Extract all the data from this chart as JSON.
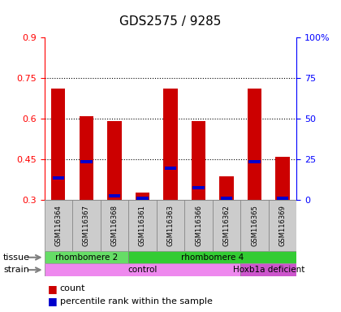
{
  "title": "GDS2575 / 9285",
  "samples": [
    "GSM116364",
    "GSM116367",
    "GSM116368",
    "GSM116361",
    "GSM116363",
    "GSM116366",
    "GSM116362",
    "GSM116365",
    "GSM116369"
  ],
  "count_values": [
    0.71,
    0.61,
    0.59,
    0.325,
    0.71,
    0.59,
    0.385,
    0.71,
    0.46
  ],
  "percentile_values": [
    0.38,
    0.44,
    0.315,
    0.305,
    0.415,
    0.345,
    0.305,
    0.44,
    0.305
  ],
  "ylim": [
    0.3,
    0.9
  ],
  "yticks": [
    0.3,
    0.45,
    0.6,
    0.75,
    0.9
  ],
  "ytick_labels": [
    "0.3",
    "0.45",
    "0.6",
    "0.75",
    "0.9"
  ],
  "right_yticks": [
    0,
    25,
    50,
    75,
    100
  ],
  "right_ytick_labels": [
    "0",
    "25",
    "50",
    "75",
    "100%"
  ],
  "bar_color": "#cc0000",
  "percentile_color": "#0000cc",
  "bg_color": "#ffffff",
  "plot_bg": "#f0f0f0",
  "grid_color": "#000000",
  "tissue_groups": [
    {
      "label": "rhombomere 2",
      "start": 0,
      "end": 3,
      "color": "#66dd66"
    },
    {
      "label": "rhombomere 4",
      "start": 3,
      "end": 9,
      "color": "#33cc33"
    }
  ],
  "strain_groups": [
    {
      "label": "control",
      "start": 0,
      "end": 7,
      "color": "#ee88ee"
    },
    {
      "label": "Hoxb1a deficient",
      "start": 7,
      "end": 9,
      "color": "#cc55cc"
    }
  ],
  "legend_items": [
    {
      "label": "count",
      "color": "#cc0000"
    },
    {
      "label": "percentile rank within the sample",
      "color": "#0000cc"
    }
  ],
  "bar_width": 0.5
}
